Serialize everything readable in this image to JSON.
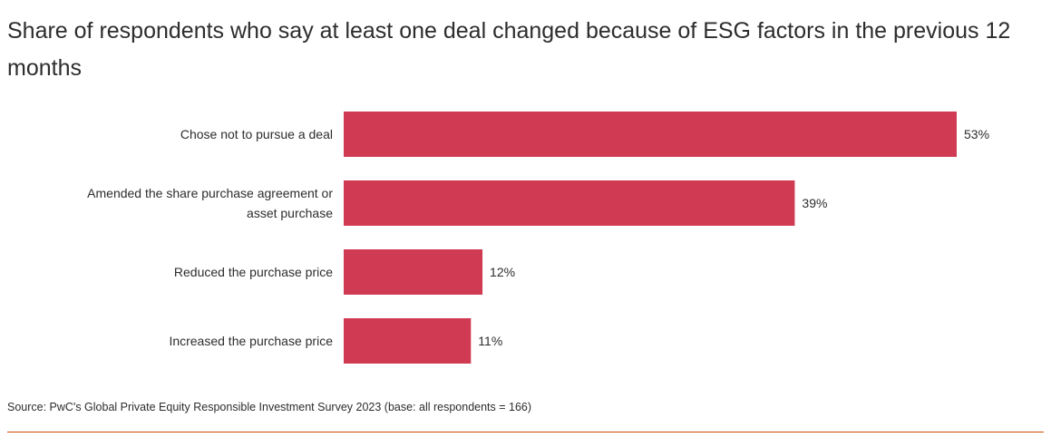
{
  "title": "Share of respondents who say at least one deal changed because of ESG factors in the previous 12 months",
  "source": "Source: PwC's Global Private Equity Responsible Investment Survey 2023 (base: all respondents = 166)",
  "colors": {
    "bar": "#d03a52",
    "text": "#2d2d2d",
    "rule": "#d04a02"
  },
  "chart_data": {
    "type": "bar",
    "orientation": "horizontal",
    "title": "Share of respondents who say at least one deal changed because of ESG factors in the previous 12 months",
    "categories": [
      [
        "Chose not to pursue a deal"
      ],
      [
        "Amended the share purchase agreement or",
        "asset purchase"
      ],
      [
        "Reduced the purchase price"
      ],
      [
        "Increased the purchase price"
      ]
    ],
    "values": [
      53,
      39,
      12,
      11
    ],
    "value_labels": [
      "53%",
      "39%",
      "12%",
      "11%"
    ],
    "unit": "%",
    "xlim": [
      0,
      53
    ],
    "xlabel": "",
    "ylabel": "",
    "grid": false,
    "legend": "none"
  }
}
